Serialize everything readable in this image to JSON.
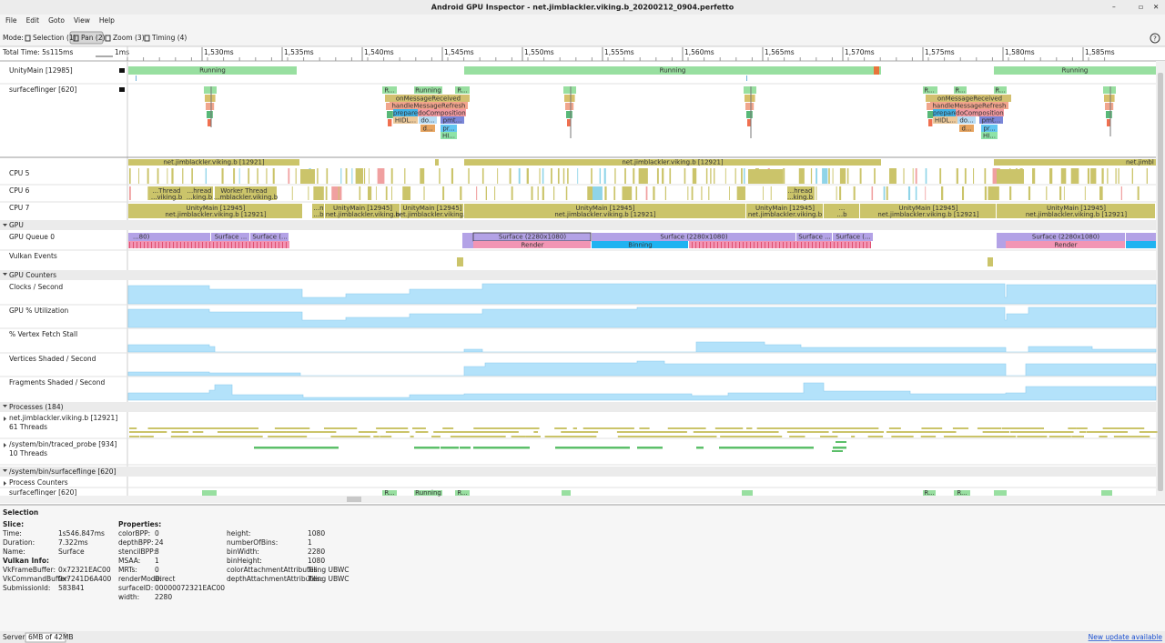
{
  "window": {
    "title": "Android GPU Inspector - net.jimblackler.viking.b_20200212_0904.perfetto"
  },
  "menu": [
    "File",
    "Edit",
    "Goto",
    "View",
    "Help"
  ],
  "toolbar": {
    "mode_label": "Mode:",
    "modes": [
      "Selection (1)",
      "Pan (2)",
      "Zoom (3)",
      "Timing (4)"
    ]
  },
  "timeline": {
    "total_time": "Total Time: 5s115ms",
    "scale": "1ms",
    "ticks": [
      "1,530ms",
      "1,535ms",
      "1,540ms",
      "1,545ms",
      "1,550ms",
      "1,555ms",
      "1,560ms",
      "1,565ms",
      "1,570ms",
      "1,575ms",
      "1,580ms",
      "1,585ms"
    ]
  },
  "tracks": {
    "unity_main": "UnityMain [12985]",
    "surfaceflinger": "surfaceflinger [620]",
    "cpu5": "CPU 5",
    "cpu6": "CPU 6",
    "cpu7": "CPU 7",
    "gpu_group": "GPU",
    "gpu_queue": "GPU Queue 0",
    "vulkan_events": "Vulkan Events",
    "counters_group": "GPU Counters",
    "clocks": "Clocks / Second",
    "utilization": "GPU % Utilization",
    "vertex_fetch": "% Vertex Fetch Stall",
    "vertices": "Vertices Shaded / Second",
    "fragments": "Fragments Shaded / Second",
    "processes_group": "Processes (184)",
    "proc_viking": "net.jimblackler.viking.b [12921]",
    "proc_viking_threads": "61 Threads",
    "proc_traced": "/system/bin/traced_probe [934]",
    "proc_traced_threads": "10 Threads",
    "proc_sf_group": "/system/bin/surfaceflinge [620]",
    "process_counters": "Process Counters",
    "sf_thread": "surfaceflinger [620]"
  },
  "slices": {
    "unity_main": [
      "Running",
      "Running",
      "Running"
    ],
    "surfaceflinger": [
      "R...",
      "Running",
      "R...",
      "onMessageReceived",
      "handleMessageRefresh",
      "prepare",
      "doComposition",
      "HIDL...",
      "do...",
      "pmt...",
      "d...",
      "pr...",
      "HI...",
      "R...",
      "R...",
      "R...",
      "onMessageReceived",
      "handleMessageRefresh",
      "prepare",
      "doComposition",
      "HIDL...",
      "do...",
      "pmt...",
      "d...",
      "pr...",
      "HI..."
    ],
    "process_summary": [
      "net.jimblackler.viking.b [12921]",
      "net.jimblackler.viking.b [12921]",
      "net.jimbl"
    ],
    "cpu6": [
      "...Thread",
      "...viking.b",
      "...hread",
      "...king.b",
      "Worker Thread",
      "...mblackler.viking.b",
      "...hread",
      "...king.b"
    ],
    "cpu7": [
      "UnityMain [12945]",
      "net.jimblackler.viking.b [12921]",
      "...n",
      "...b",
      "UnityMain [12945]",
      "net.jimblackler.viking.b",
      "UnityMain [12945]",
      "net.jimblackler.viking.b",
      "UnityMain [12945]",
      "net.jimblackler.viking.b [12921]",
      "UnityMain [12945]",
      "net.jimblackler.viking.b",
      "...",
      "...b",
      "UnityMain [12945]",
      "net.jimblackler.viking.b [12921]",
      "UnityMain [12945]",
      "net.jimblackler.viking.b [12921]"
    ],
    "gpu_queue": [
      "...80)",
      "Surface ...",
      "Surface (...",
      "Surface (2280x1080)",
      "Render",
      "Binning",
      "Surface (2280x1080)",
      "Surface ...",
      "Surface (...",
      "Surface (2280x1080)",
      "Render"
    ],
    "sf_bottom": [
      "R...",
      "Running",
      "R...",
      "R...",
      "R..."
    ]
  },
  "selection": {
    "title": "Selection",
    "slice": {
      "heading": "Slice:",
      "rows": [
        [
          "Time:",
          "1s546.847ms"
        ],
        [
          "Duration:",
          "7.322ms"
        ],
        [
          "Name:",
          "Surface"
        ]
      ]
    },
    "vulkan": {
      "heading": "Vulkan Info:",
      "rows": [
        [
          "VkFrameBuffer:",
          "0x72321EAC00"
        ],
        [
          "VkCommandBuffer:",
          "0x7241D6A400"
        ],
        [
          "SubmissionId:",
          "583841"
        ]
      ]
    },
    "properties": {
      "heading": "Properties:",
      "rows": [
        [
          "colorBPP:",
          "0"
        ],
        [
          "depthBPP:",
          "24"
        ],
        [
          "stencilBPP:",
          "8"
        ],
        [
          "MSAA:",
          "1"
        ],
        [
          "MRTs:",
          "0"
        ],
        [
          "renderMode:",
          "Direct"
        ],
        [
          "surfaceID:",
          "00000072321EAC00"
        ],
        [
          "width:",
          "2280"
        ],
        [
          "height:",
          "1080"
        ],
        [
          "numberOfBins:",
          "1"
        ],
        [
          "binWidth:",
          "2280"
        ],
        [
          "binHeight:",
          "1080"
        ],
        [
          "colorAttachmentAttributes:",
          "Tiling UBWC"
        ],
        [
          "depthAttachmentAttributes:",
          "Tiling UBWC"
        ]
      ]
    }
  },
  "status": {
    "server_label": "Server:",
    "memory": "6MB of 42MB",
    "update": "New update available"
  }
}
